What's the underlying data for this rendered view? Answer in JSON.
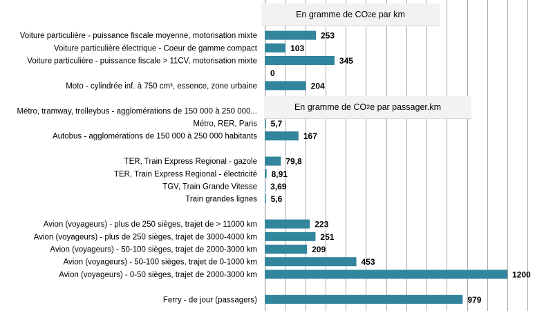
{
  "chart_data": {
    "type": "bar",
    "orientation": "horizontal",
    "grid": true,
    "xlim": [
      0,
      1300
    ],
    "annotations": [
      {
        "pre": "En gramme de CO",
        "sub": "2",
        "post": "e par km"
      },
      {
        "pre": "En gramme de CO",
        "sub": "2",
        "post": "e par passager.km"
      }
    ],
    "color": "#31859c",
    "categories": [
      "Voiture particulière - puissance fiscale moyenne, motorisation mixte",
      "Voiture particulière électrique - Coeur de gamme compact",
      "Voiture particulière - puissance fiscale > 11CV, motorisation mixte",
      "",
      "Moto - cylindrée inf. à 750 cm³, essence, zone urbaine",
      "",
      "Métro, tramway, trolleybus - agglomérations de 150 000 à 250 000...",
      "Métro, RER, Paris",
      "Autobus - agglomérations de 150 000 à 250 000 habitants",
      "",
      "TER, Train Express Regional - gazole",
      "TER, Train Express Regional - électricité",
      "TGV, Train Grande Vitesse",
      "Train grandes lignes",
      "",
      "Avion (voyageurs) - plus de 250 sièges, trajet de > 11000 km",
      "Avion (voyageurs) - plus de 250 sièges, trajet de 3000-4000 km",
      "Avion (voyageurs) - 50-100 sièges, trajet de 2000-3000 km",
      "Avion (voyageurs) - 50-100 sièges, trajet de 0-1000 km",
      "Avion (voyageurs) - 0-50 sièges, trajet de 2000-3000 km",
      "",
      "Ferry - de jour (passagers)"
    ],
    "values": [
      253,
      103,
      345,
      0,
      204,
      null,
      null,
      5.7,
      167,
      null,
      79.8,
      8.91,
      3.69,
      5.6,
      null,
      223,
      251,
      209,
      453,
      1200,
      null,
      979
    ],
    "value_labels": [
      "253",
      "103",
      "345",
      "0",
      "204",
      "",
      "",
      "5,7",
      "167",
      "",
      "79,8",
      "8,91",
      "3,69",
      "5,6",
      "",
      "223",
      "251",
      "209",
      "453",
      "1200",
      "",
      "979"
    ]
  }
}
